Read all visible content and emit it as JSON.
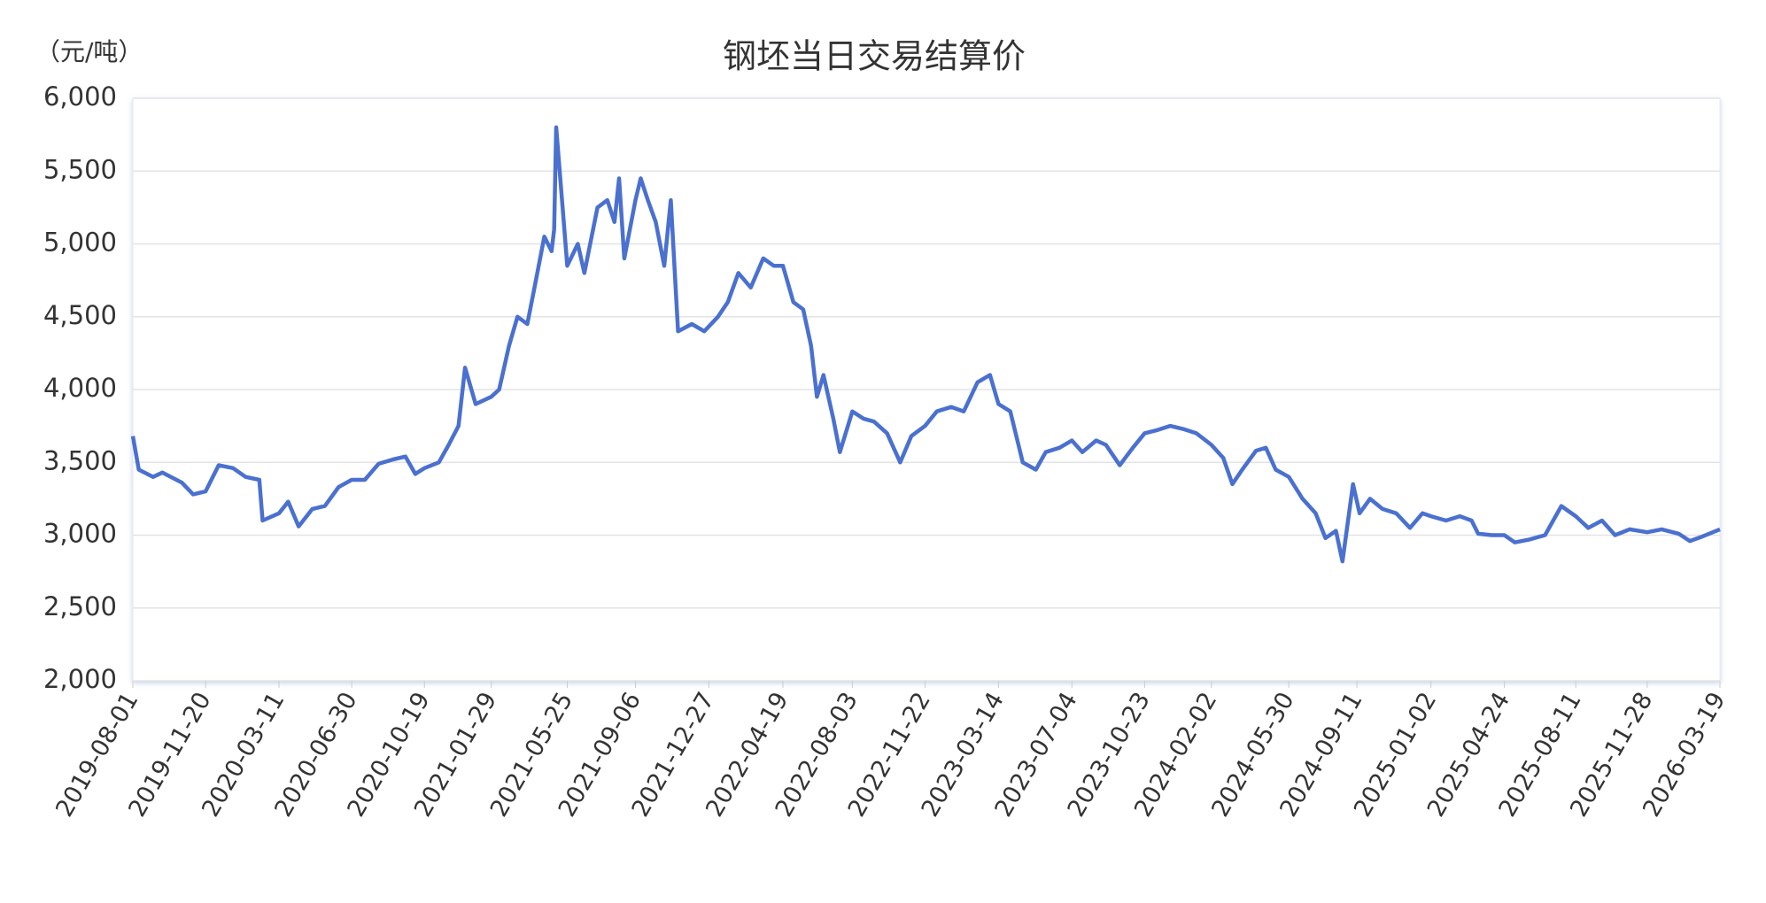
{
  "chart_data": {
    "type": "line",
    "title": "钢坯当日交易结算价",
    "y_label": "（元/吨）",
    "color": "#4a70d0",
    "grid": true,
    "xlim": [
      "2019-08-01",
      "2026-03-19"
    ],
    "xticks": [
      "2019-08-01",
      "2019-11-20",
      "2020-03-11",
      "2020-06-30",
      "2020-10-19",
      "2021-01-29",
      "2021-05-25",
      "2021-09-06",
      "2021-12-27",
      "2022-04-19",
      "2022-08-03",
      "2022-11-22",
      "2023-03-14",
      "2023-07-04",
      "2023-10-23",
      "2024-02-02",
      "2024-05-30",
      "2024-09-11",
      "2025-01-02",
      "2025-04-24",
      "2025-08-11",
      "2025-11-28",
      "2026-03-19"
    ],
    "ylim": [
      2000,
      6000
    ],
    "yticks": [
      {
        "value": 2000,
        "label": "2,000"
      },
      {
        "value": 2500,
        "label": "2,500"
      },
      {
        "value": 3000,
        "label": "3,000"
      },
      {
        "value": 3500,
        "label": "3,500"
      },
      {
        "value": 4000,
        "label": "4,000"
      },
      {
        "value": 4500,
        "label": "4,500"
      },
      {
        "value": 5000,
        "label": "5,000"
      },
      {
        "value": 5500,
        "label": "5,500"
      },
      {
        "value": 6000,
        "label": "6,000"
      }
    ],
    "x": [
      "2019-08-01",
      "2019-08-10",
      "2019-09-01",
      "2019-09-15",
      "2019-10-15",
      "2019-11-01",
      "2019-11-20",
      "2019-12-10",
      "2020-01-01",
      "2020-01-20",
      "2020-02-10",
      "2020-02-15",
      "2020-03-11",
      "2020-03-25",
      "2020-04-10",
      "2020-05-01",
      "2020-05-20",
      "2020-06-10",
      "2020-06-30",
      "2020-07-20",
      "2020-08-10",
      "2020-09-01",
      "2020-09-20",
      "2020-10-05",
      "2020-10-19",
      "2020-11-10",
      "2020-11-25",
      "2020-12-10",
      "2020-12-20",
      "2021-01-05",
      "2021-01-29",
      "2021-02-10",
      "2021-02-25",
      "2021-03-10",
      "2021-03-25",
      "2021-04-05",
      "2021-04-20",
      "2021-05-01",
      "2021-05-05",
      "2021-05-08",
      "2021-05-25",
      "2021-06-10",
      "2021-06-20",
      "2021-07-10",
      "2021-07-25",
      "2021-08-05",
      "2021-08-12",
      "2021-08-20",
      "2021-09-06",
      "2021-09-14",
      "2021-09-25",
      "2021-10-07",
      "2021-10-20",
      "2021-10-30",
      "2021-11-10",
      "2021-12-01",
      "2021-12-20",
      "2022-01-10",
      "2022-01-25",
      "2022-02-10",
      "2022-03-01",
      "2022-03-20",
      "2022-04-05",
      "2022-04-19",
      "2022-05-05",
      "2022-05-20",
      "2022-06-01",
      "2022-06-10",
      "2022-06-20",
      "2022-07-05",
      "2022-07-15",
      "2022-08-03",
      "2022-08-20",
      "2022-09-05",
      "2022-09-25",
      "2022-10-15",
      "2022-11-01",
      "2022-11-22",
      "2022-12-10",
      "2023-01-01",
      "2023-01-20",
      "2023-02-10",
      "2023-03-01",
      "2023-03-14",
      "2023-04-01",
      "2023-04-20",
      "2023-05-10",
      "2023-05-25",
      "2023-06-15",
      "2023-07-04",
      "2023-07-20",
      "2023-08-10",
      "2023-08-25",
      "2023-09-15",
      "2023-10-05",
      "2023-10-23",
      "2023-11-10",
      "2023-12-01",
      "2023-12-20",
      "2024-01-10",
      "2024-02-02",
      "2024-02-20",
      "2024-03-05",
      "2024-03-20",
      "2024-04-10",
      "2024-04-25",
      "2024-05-10",
      "2024-05-30",
      "2024-06-20",
      "2024-07-10",
      "2024-07-25",
      "2024-08-10",
      "2024-08-20",
      "2024-09-05",
      "2024-09-15",
      "2024-10-01",
      "2024-10-20",
      "2024-11-10",
      "2024-12-01",
      "2024-12-20",
      "2025-01-02",
      "2025-01-25",
      "2025-02-15",
      "2025-03-05",
      "2025-03-15",
      "2025-04-05",
      "2025-04-24",
      "2025-05-10",
      "2025-06-01",
      "2025-06-25",
      "2025-07-20",
      "2025-08-11",
      "2025-08-30",
      "2025-09-20",
      "2025-10-10",
      "2025-11-01",
      "2025-11-28",
      "2025-12-20",
      "2026-01-15",
      "2026-02-01",
      "2026-02-20",
      "2026-03-19"
    ],
    "values": [
      3680,
      3450,
      3400,
      3430,
      3360,
      3280,
      3300,
      3480,
      3460,
      3400,
      3380,
      3100,
      3150,
      3230,
      3060,
      3180,
      3200,
      3330,
      3380,
      3380,
      3490,
      3520,
      3540,
      3420,
      3460,
      3500,
      3620,
      3750,
      4150,
      3900,
      3950,
      4000,
      4300,
      4500,
      4450,
      4700,
      5050,
      4950,
      5100,
      5800,
      4850,
      5000,
      4800,
      5250,
      5300,
      5150,
      5450,
      4900,
      5300,
      5450,
      5300,
      5150,
      4850,
      5300,
      4400,
      4450,
      4400,
      4500,
      4600,
      4800,
      4700,
      4900,
      4850,
      4850,
      4600,
      4550,
      4300,
      3950,
      4100,
      3800,
      3570,
      3850,
      3800,
      3780,
      3700,
      3500,
      3680,
      3750,
      3850,
      3880,
      3850,
      4050,
      4100,
      3900,
      3850,
      3500,
      3450,
      3570,
      3600,
      3650,
      3570,
      3650,
      3620,
      3480,
      3600,
      3700,
      3720,
      3750,
      3730,
      3700,
      3620,
      3530,
      3350,
      3450,
      3580,
      3600,
      3450,
      3400,
      3250,
      3150,
      2980,
      3030,
      2820,
      3350,
      3150,
      3250,
      3180,
      3150,
      3050,
      3150,
      3130,
      3100,
      3130,
      3100,
      3010,
      3000,
      3000,
      2950,
      2970,
      3000,
      3200,
      3130,
      3050,
      3100,
      3000,
      3040,
      3020,
      3040,
      3010,
      2960,
      2990,
      3040
    ]
  }
}
